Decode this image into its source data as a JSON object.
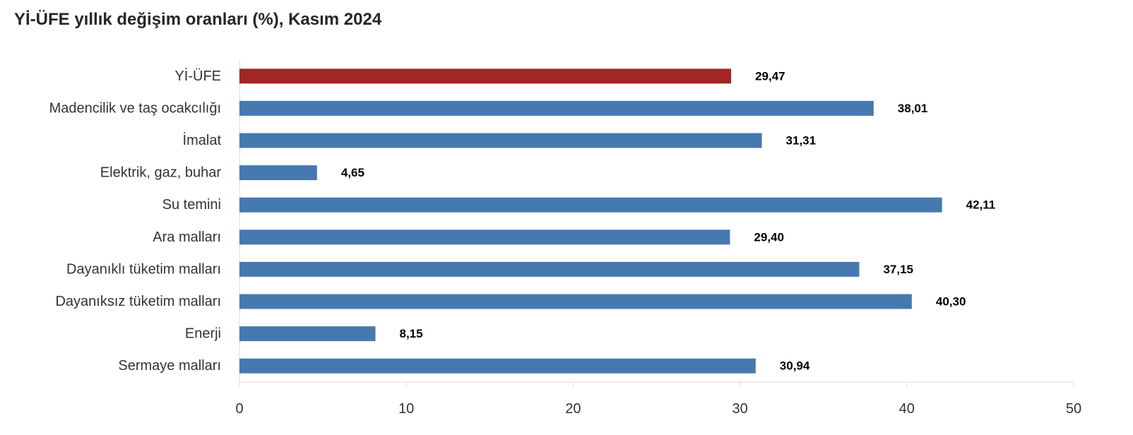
{
  "chart_data": {
    "type": "bar",
    "orientation": "horizontal",
    "title": "Yİ-ÜFE yıllık değişim oranları (%), Kasım 2024",
    "categories": [
      "Yİ-ÜFE",
      "Madencilik ve taş ocakcılığı",
      "İmalat",
      "Elektrik, gaz, buhar",
      "Su temini",
      "Ara malları",
      "Dayanıklı tüketim malları",
      "Dayanıksız tüketim malları",
      "Enerji",
      "Sermaye malları"
    ],
    "values": [
      29.47,
      38.01,
      31.31,
      4.65,
      42.11,
      29.4,
      37.15,
      40.3,
      8.15,
      30.94
    ],
    "value_labels": [
      "29,47",
      "38,01",
      "31,31",
      "4,65",
      "42,11",
      "29,40",
      "37,15",
      "40,30",
      "8,15",
      "30,94"
    ],
    "xlim": [
      0,
      50
    ],
    "x_ticks": [
      0,
      10,
      20,
      30,
      40,
      50
    ],
    "x_tick_labels": [
      "0",
      "10",
      "20",
      "30",
      "40",
      "50"
    ],
    "xlabel": "",
    "ylabel": "",
    "grid": false,
    "legend": "none",
    "colors": {
      "highlight": "#A12725",
      "default": "#4679B0",
      "axis": "#D9D9D9"
    },
    "highlight_index": 0
  }
}
